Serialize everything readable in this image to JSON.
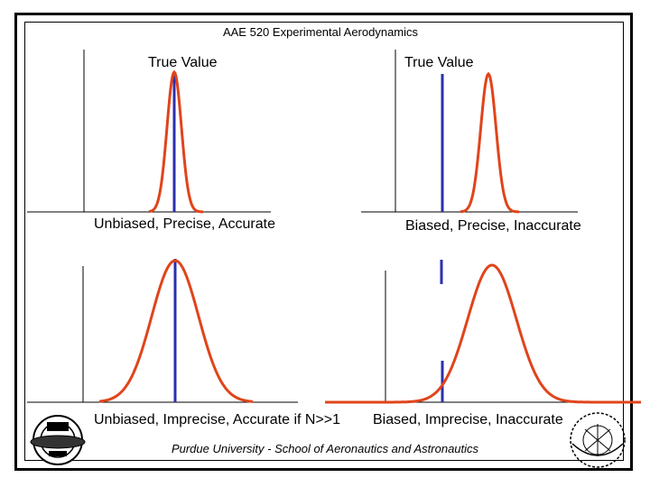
{
  "header": {
    "course_title": "AAE 520 Experimental Aerodynamics"
  },
  "panels": [
    {
      "id": "top-left",
      "top_label": "True Value",
      "caption": "Unbiased, Precise, Accurate",
      "curve_color": "#e0441b",
      "true_value_color": "#2b2fae"
    },
    {
      "id": "top-right",
      "top_label": "True Value",
      "caption": "Biased, Precise, Inaccurate",
      "curve_color": "#e0441b",
      "true_value_color": "#2b2fae"
    },
    {
      "id": "bottom-left",
      "top_label": "",
      "caption": "Unbiased, Imprecise, Accurate if N>>1",
      "curve_color": "#e0441b",
      "true_value_color": "#2b2fae"
    },
    {
      "id": "bottom-right",
      "top_label": "",
      "caption": "Biased, Imprecise, Inaccurate",
      "curve_color": "#e0441b",
      "true_value_color": "#2b2fae"
    }
  ],
  "footer": {
    "text": "Purdue University - School of Aeronautics and Astronautics"
  },
  "logos": {
    "left": "purdue-university-seal-icon",
    "right": "purdue-university-emblem-icon"
  }
}
